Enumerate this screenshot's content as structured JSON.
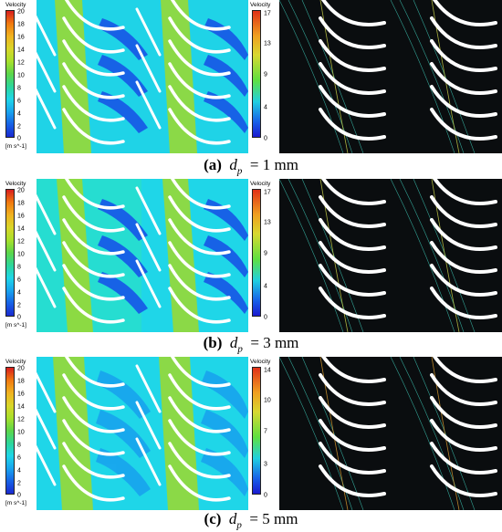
{
  "colorbar_title": "Velocity",
  "unit": "[m s^-1]",
  "rows": [
    {
      "caption_letter": "(a)",
      "caption_var": "d",
      "caption_sub": "p",
      "caption_value": "= 1 mm",
      "left_ticks": [
        "20",
        "18",
        "16",
        "14",
        "12",
        "10",
        "8",
        "6",
        "4",
        "2",
        "0"
      ],
      "right_ticks": [
        "17",
        "13",
        "9",
        "4",
        "0"
      ]
    },
    {
      "caption_letter": "(b)",
      "caption_var": "d",
      "caption_sub": "p",
      "caption_value": "= 3 mm",
      "left_ticks": [
        "20",
        "18",
        "16",
        "14",
        "12",
        "10",
        "8",
        "6",
        "4",
        "2",
        "0"
      ],
      "right_ticks": [
        "17",
        "13",
        "9",
        "4",
        "0"
      ]
    },
    {
      "caption_letter": "(c)",
      "caption_var": "d",
      "caption_sub": "p",
      "caption_value": "= 5 mm",
      "left_ticks": [
        "20",
        "18",
        "16",
        "14",
        "12",
        "10",
        "8",
        "6",
        "4",
        "2",
        "0"
      ],
      "right_ticks": [
        "14",
        "10",
        "7",
        "3",
        "0"
      ]
    }
  ],
  "colors": {
    "contour_high": "#e8411a",
    "contour_mid": "#9fd92a",
    "contour_cyan": "#1fd6e8",
    "contour_low": "#1a3fd6",
    "streamline_bg": "#0a0d0f"
  }
}
